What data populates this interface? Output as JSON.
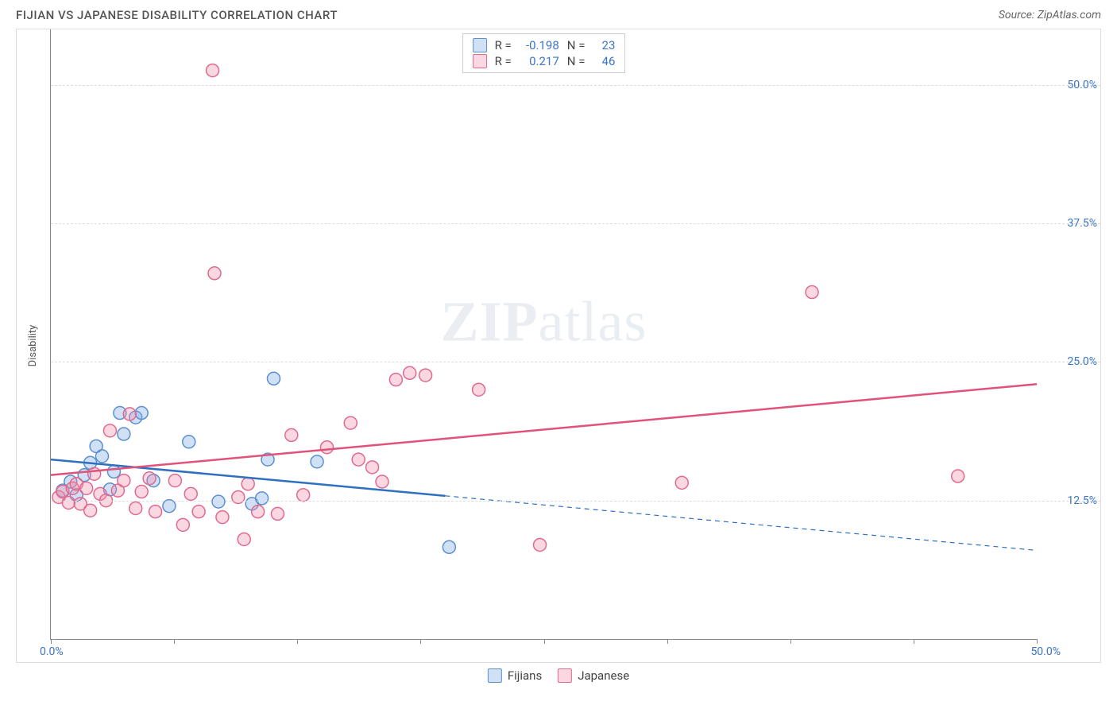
{
  "title": "FIJIAN VS JAPANESE DISABILITY CORRELATION CHART",
  "source": "Source: ZipAtlas.com",
  "y_axis_label": "Disability",
  "watermark_a": "ZIP",
  "watermark_b": "atlas",
  "chart": {
    "type": "scatter",
    "xlim": [
      0,
      50
    ],
    "ylim": [
      0,
      55
    ],
    "x_ticks": [
      0,
      6.25,
      12.5,
      18.75,
      25,
      31.25,
      37.5,
      43.75,
      50
    ],
    "x_tick_labels_shown": {
      "0": "0.0%",
      "50": "50.0%"
    },
    "y_grid": [
      12.5,
      25,
      37.5,
      50
    ],
    "y_tick_labels": {
      "12.5": "12.5%",
      "25": "25.0%",
      "37.5": "37.5%",
      "50": "50.0%"
    },
    "grid_color": "#dddddd",
    "axis_color": "#888888",
    "background_color": "#ffffff",
    "marker_radius": 8,
    "marker_stroke_width": 1.5,
    "series": [
      {
        "name": "Fijians",
        "color_fill": "rgba(120,170,230,0.35)",
        "color_stroke": "#5b8fd0",
        "R_label": "R =",
        "R_value": "-0.198",
        "N_label": "N =",
        "N_value": "23",
        "trend": {
          "x1": 0,
          "y1": 16.2,
          "x2": 50,
          "y2": 8.0,
          "solid_until_x": 20,
          "color": "#2f6fc0",
          "width": 2.5
        },
        "points": [
          [
            0.6,
            13.4
          ],
          [
            1.0,
            14.2
          ],
          [
            1.3,
            13.0
          ],
          [
            1.7,
            14.8
          ],
          [
            2.0,
            15.9
          ],
          [
            2.3,
            17.4
          ],
          [
            2.6,
            16.5
          ],
          [
            3.0,
            13.5
          ],
          [
            3.2,
            15.1
          ],
          [
            3.5,
            20.4
          ],
          [
            3.7,
            18.5
          ],
          [
            4.3,
            20.0
          ],
          [
            4.6,
            20.4
          ],
          [
            5.2,
            14.3
          ],
          [
            6.0,
            12.0
          ],
          [
            7.0,
            17.8
          ],
          [
            8.5,
            12.4
          ],
          [
            10.2,
            12.2
          ],
          [
            10.7,
            12.7
          ],
          [
            11.0,
            16.2
          ],
          [
            11.3,
            23.5
          ],
          [
            13.5,
            16.0
          ],
          [
            20.2,
            8.3
          ]
        ]
      },
      {
        "name": "Japanese",
        "color_fill": "rgba(240,140,170,0.35)",
        "color_stroke": "#e06a8f",
        "R_label": "R =",
        "R_value": "0.217",
        "N_label": "N =",
        "N_value": "46",
        "trend": {
          "x1": 0,
          "y1": 14.8,
          "x2": 50,
          "y2": 23.0,
          "solid_until_x": 50,
          "color": "#e0527a",
          "width": 2.5
        },
        "points": [
          [
            0.4,
            12.8
          ],
          [
            0.6,
            13.3
          ],
          [
            0.9,
            12.3
          ],
          [
            1.1,
            13.6
          ],
          [
            1.3,
            14.0
          ],
          [
            1.5,
            12.2
          ],
          [
            1.8,
            13.6
          ],
          [
            2.0,
            11.6
          ],
          [
            2.2,
            14.9
          ],
          [
            2.5,
            13.1
          ],
          [
            2.8,
            12.5
          ],
          [
            3.0,
            18.8
          ],
          [
            3.4,
            13.4
          ],
          [
            3.7,
            14.3
          ],
          [
            4.0,
            20.3
          ],
          [
            4.3,
            11.8
          ],
          [
            4.6,
            13.3
          ],
          [
            5.0,
            14.5
          ],
          [
            5.3,
            11.5
          ],
          [
            6.3,
            14.3
          ],
          [
            6.7,
            10.3
          ],
          [
            7.1,
            13.1
          ],
          [
            7.5,
            11.5
          ],
          [
            8.2,
            51.3
          ],
          [
            8.3,
            33.0
          ],
          [
            8.7,
            11.0
          ],
          [
            9.5,
            12.8
          ],
          [
            9.8,
            9.0
          ],
          [
            10.0,
            14.0
          ],
          [
            10.5,
            11.5
          ],
          [
            11.5,
            11.3
          ],
          [
            12.2,
            18.4
          ],
          [
            12.8,
            13.0
          ],
          [
            14.0,
            17.3
          ],
          [
            15.2,
            19.5
          ],
          [
            15.6,
            16.2
          ],
          [
            16.3,
            15.5
          ],
          [
            16.8,
            14.2
          ],
          [
            17.5,
            23.4
          ],
          [
            18.2,
            24.0
          ],
          [
            19.0,
            23.8
          ],
          [
            21.7,
            22.5
          ],
          [
            24.8,
            8.5
          ],
          [
            32.0,
            14.1
          ],
          [
            38.6,
            31.3
          ],
          [
            46.0,
            14.7
          ]
        ]
      }
    ]
  },
  "legend_bottom": [
    {
      "label": "Fijians",
      "fill": "rgba(120,170,230,0.35)",
      "stroke": "#5b8fd0"
    },
    {
      "label": "Japanese",
      "fill": "rgba(240,140,170,0.35)",
      "stroke": "#e06a8f"
    }
  ]
}
